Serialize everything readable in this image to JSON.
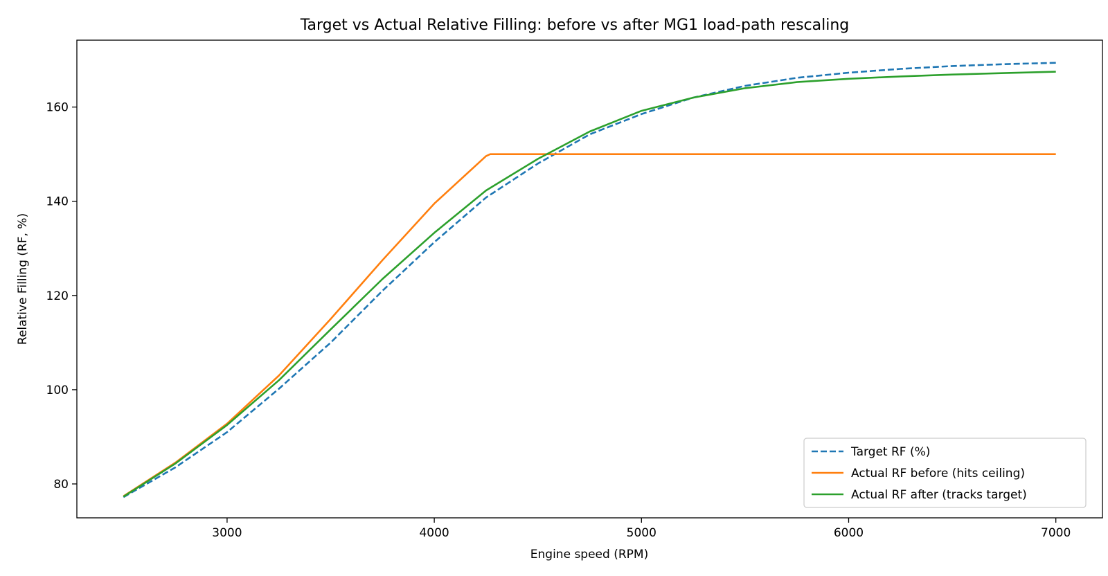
{
  "chart_data": {
    "type": "line",
    "title": "Target vs Actual Relative Filling: before vs after MG1 load-path rescaling",
    "xlabel": "Engine speed (RPM)",
    "ylabel": "Relative Filling (RF, %)",
    "xlim": [
      2275,
      7225
    ],
    "ylim": [
      72.8,
      174.2
    ],
    "xticks": [
      3000,
      4000,
      5000,
      6000,
      7000
    ],
    "yticks": [
      80,
      100,
      120,
      140,
      160
    ],
    "grid": false,
    "legend_position": "lower right",
    "series": [
      {
        "name": "Target RF (%)",
        "color": "#1f77b4",
        "style": "dashed",
        "x": [
          2500,
          2750,
          3000,
          3250,
          3500,
          3750,
          4000,
          4250,
          4500,
          4750,
          5000,
          5250,
          5500,
          5750,
          6000,
          6250,
          6500,
          6750,
          7000
        ],
        "y": [
          77.2,
          83.5,
          91.0,
          100.2,
          110.0,
          121.0,
          131.3,
          140.8,
          148.0,
          154.2,
          158.5,
          162.0,
          164.5,
          166.2,
          167.3,
          168.1,
          168.7,
          169.1,
          169.4
        ]
      },
      {
        "name": "Actual RF before (hits ceiling)",
        "color": "#ff7f0e",
        "style": "solid",
        "x": [
          2500,
          2750,
          3000,
          3250,
          3500,
          3750,
          4000,
          4250,
          4270,
          4500,
          5000,
          5500,
          6000,
          6500,
          7000
        ],
        "y": [
          77.4,
          84.5,
          92.8,
          103.0,
          115.0,
          127.5,
          139.5,
          149.6,
          150.0,
          150.0,
          150.0,
          150.0,
          150.0,
          150.0,
          150.0
        ]
      },
      {
        "name": "Actual RF after (tracks target)",
        "color": "#2ca02c",
        "style": "solid",
        "x": [
          2500,
          2750,
          3000,
          3250,
          3500,
          3750,
          4000,
          4250,
          4500,
          4750,
          5000,
          5250,
          5500,
          5750,
          6000,
          6250,
          6500,
          6750,
          7000
        ],
        "y": [
          77.3,
          84.3,
          92.5,
          102.0,
          112.8,
          123.5,
          133.3,
          142.3,
          149.0,
          154.8,
          159.2,
          162.0,
          164.0,
          165.3,
          166.0,
          166.5,
          166.9,
          167.2,
          167.5
        ]
      }
    ]
  }
}
